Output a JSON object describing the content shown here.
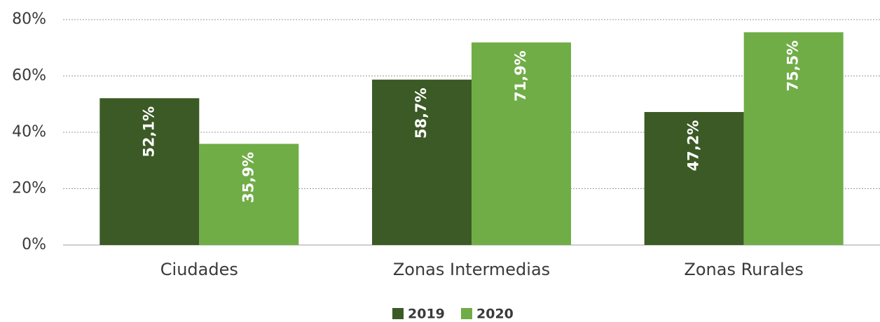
{
  "chart_data": {
    "type": "bar",
    "categories": [
      "Ciudades",
      "Zonas Intermedias",
      "Zonas Rurales"
    ],
    "series": [
      {
        "name": "2019",
        "color": "#3b5a25",
        "values": [
          52.1,
          58.7,
          47.2
        ],
        "value_labels": [
          "52,1%",
          "58,7%",
          "47,2%"
        ]
      },
      {
        "name": "2020",
        "color": "#70ad47",
        "values": [
          35.9,
          71.9,
          75.5
        ],
        "value_labels": [
          "35,9%",
          "71,9%",
          "75,5%"
        ]
      }
    ],
    "ylim": [
      0,
      80
    ],
    "yticks": [
      {
        "value": 0,
        "label": "0%"
      },
      {
        "value": 20,
        "label": "20%"
      },
      {
        "value": 40,
        "label": "40%"
      },
      {
        "value": 60,
        "label": "60%"
      },
      {
        "value": 80,
        "label": "80%"
      }
    ],
    "grid": true,
    "legend": "bottom"
  }
}
